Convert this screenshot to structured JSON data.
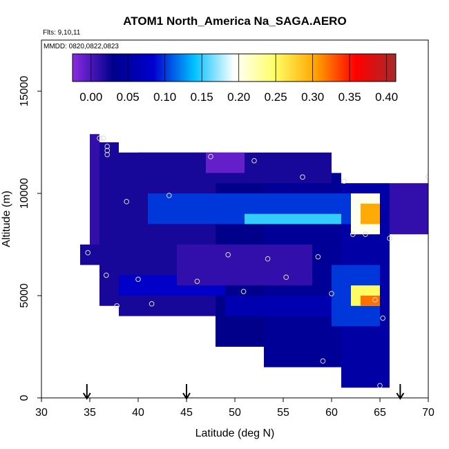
{
  "chart_data": {
    "type": "heatmap",
    "title": "ATOM1 North_America Na_SAGA.AERO",
    "annotations": [
      "Flts: 9,10,11",
      "MMDD: 0820,0822,0823"
    ],
    "xlabel": "Latitude (deg N)",
    "ylabel": "Altitude (m)",
    "xlim": [
      30,
      70
    ],
    "ylim": [
      0,
      17500
    ],
    "xticks": [
      30,
      35,
      40,
      45,
      50,
      55,
      60,
      65,
      70
    ],
    "yticks": [
      0,
      5000,
      10000,
      15000
    ],
    "grid": false,
    "colorbar": {
      "placement": "top-inside",
      "min": -0.025,
      "max": 0.4125,
      "ticks": [
        0.0,
        0.05,
        0.1,
        0.15,
        0.2,
        0.25,
        0.3,
        0.35,
        0.4
      ],
      "tick_labels": [
        "0.00",
        "0.05",
        "0.10",
        "0.15",
        "0.20",
        "0.25",
        "0.30",
        "0.35",
        "0.40"
      ],
      "stops": [
        "#8A2BE2",
        "#00008B",
        "#0000CD",
        "#00BFFF",
        "#FFFFFF",
        "#FFFF66",
        "#FFA500",
        "#FF0000",
        "#A52A2A"
      ]
    },
    "flight_arrows_lat": [
      34.7,
      45.0,
      67.1
    ],
    "heatmap": {
      "lat_bin_width": 1,
      "alt_bin_height": 500,
      "regions": [
        {
          "lat": [
            35,
            36
          ],
          "alt": [
            7000,
            12900
          ],
          "value": 0.01
        },
        {
          "lat": [
            36,
            38
          ],
          "alt": [
            4500,
            12500
          ],
          "value": 0.02
        },
        {
          "lat": [
            38,
            48
          ],
          "alt": [
            4000,
            12000
          ],
          "value": 0.02
        },
        {
          "lat": [
            48,
            53
          ],
          "alt": [
            2500,
            11500
          ],
          "value": 0.03
        },
        {
          "lat": [
            53,
            61
          ],
          "alt": [
            1500,
            11000
          ],
          "value": 0.04
        },
        {
          "lat": [
            61,
            66
          ],
          "alt": [
            500,
            10500
          ],
          "value": 0.05
        },
        {
          "lat": [
            66,
            70
          ],
          "alt": [
            8000,
            10500
          ],
          "value": 0.01
        },
        {
          "lat": [
            34,
            36
          ],
          "alt": [
            6500,
            7500
          ],
          "value": 0.02
        },
        {
          "lat": [
            41,
            62
          ],
          "alt": [
            8500,
            10000
          ],
          "value": 0.1
        },
        {
          "lat": [
            51,
            61
          ],
          "alt": [
            8500,
            9000
          ],
          "value": 0.15
        },
        {
          "lat": [
            38,
            49
          ],
          "alt": [
            5000,
            6000
          ],
          "value": 0.08
        },
        {
          "lat": [
            49,
            60
          ],
          "alt": [
            4000,
            5000
          ],
          "value": 0.06
        },
        {
          "lat": [
            60,
            65
          ],
          "alt": [
            3500,
            6500
          ],
          "value": 0.1
        },
        {
          "lat": [
            62,
            65
          ],
          "alt": [
            4500,
            5500
          ],
          "value": 0.25
        },
        {
          "lat": [
            63,
            65
          ],
          "alt": [
            4500,
            5000
          ],
          "value": 0.32
        },
        {
          "lat": [
            62,
            65
          ],
          "alt": [
            8000,
            10000
          ],
          "value": 0.2
        },
        {
          "lat": [
            63,
            65
          ],
          "alt": [
            8500,
            9500
          ],
          "value": 0.3
        },
        {
          "lat": [
            44,
            58
          ],
          "alt": [
            5500,
            7500
          ],
          "value": 0.01
        },
        {
          "lat": [
            40,
            60
          ],
          "alt": [
            10500,
            12000
          ],
          "value": 0.02
        },
        {
          "lat": [
            47,
            51
          ],
          "alt": [
            11000,
            12000
          ],
          "value": -0.01
        }
      ]
    },
    "flight_points": [
      [
        36.0,
        12700
      ],
      [
        36.4,
        12700
      ],
      [
        36.8,
        12300
      ],
      [
        36.8,
        12100
      ],
      [
        36.8,
        11900
      ],
      [
        47.5,
        11800
      ],
      [
        52.0,
        11600
      ],
      [
        57.0,
        10800
      ],
      [
        61.3,
        10600
      ],
      [
        70.0,
        10800
      ],
      [
        43.2,
        9900
      ],
      [
        38.8,
        9600
      ],
      [
        62.2,
        8000
      ],
      [
        63.5,
        8000
      ],
      [
        66.0,
        7800
      ],
      [
        34.8,
        7100
      ],
      [
        49.3,
        7000
      ],
      [
        53.4,
        6800
      ],
      [
        58.6,
        6900
      ],
      [
        36.7,
        6000
      ],
      [
        40.0,
        5800
      ],
      [
        46.1,
        5700
      ],
      [
        55.3,
        5900
      ],
      [
        60.0,
        5100
      ],
      [
        64.5,
        4800
      ],
      [
        50.9,
        5200
      ],
      [
        41.4,
        4600
      ],
      [
        37.8,
        4500
      ],
      [
        65.3,
        3900
      ],
      [
        59.1,
        1800
      ],
      [
        65.0,
        600
      ]
    ]
  }
}
